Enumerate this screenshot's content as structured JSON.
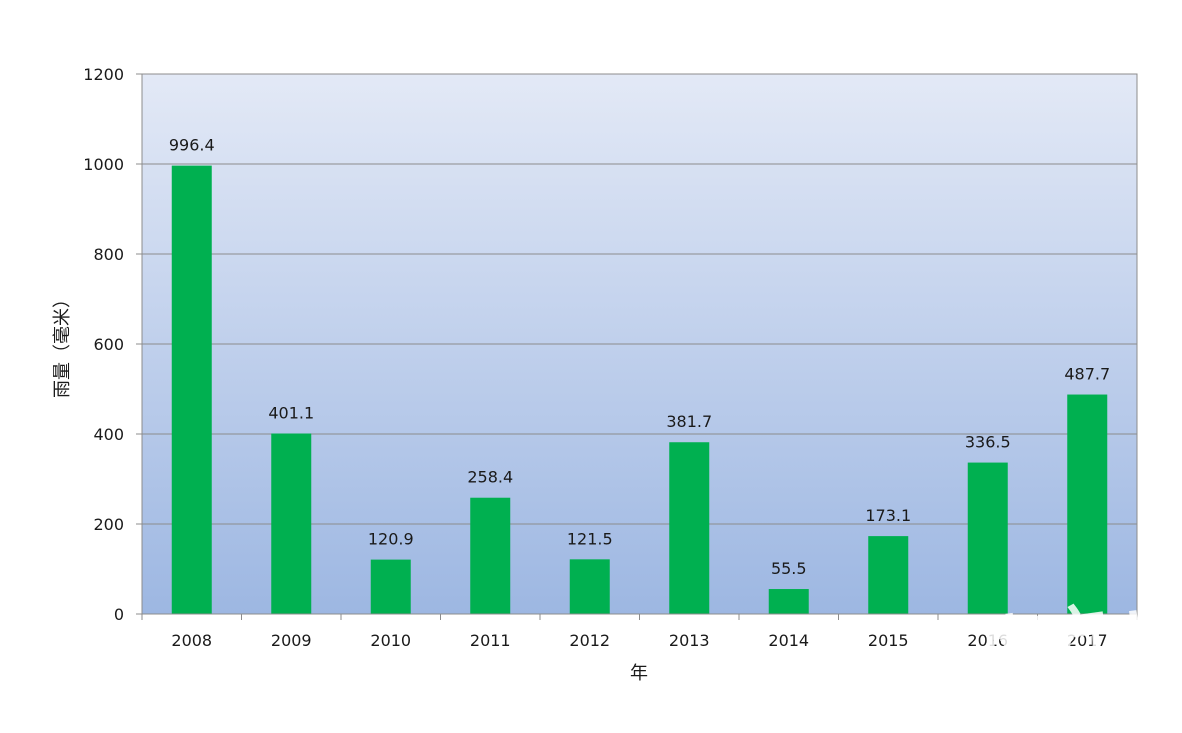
{
  "chart_data": {
    "type": "bar",
    "categories": [
      "2008",
      "2009",
      "2010",
      "2011",
      "2012",
      "2013",
      "2014",
      "2015",
      "2016",
      "2017"
    ],
    "series": [
      {
        "values": [
          996.4,
          401.1,
          120.9,
          258.4,
          121.5,
          381.7,
          55.5,
          173.1,
          336.5,
          487.7
        ]
      }
    ],
    "data_labels": [
      "996.4",
      "401.1",
      "120.9",
      "258.4",
      "121.5",
      "381.7",
      "55.5",
      "173.1",
      "336.5",
      "487.7"
    ],
    "xlabel": "年",
    "ylabel": "雨量（毫米）",
    "ylim": [
      0,
      1200
    ],
    "yticks": [
      0,
      200,
      400,
      600,
      800,
      1000,
      1200
    ],
    "grid": true,
    "legend": "none",
    "bar_color": "#00b050",
    "plot_background_top": "#e3e9f6",
    "plot_background_bottom": "#9db7e2"
  },
  "watermark": {
    "text": "南方+"
  }
}
